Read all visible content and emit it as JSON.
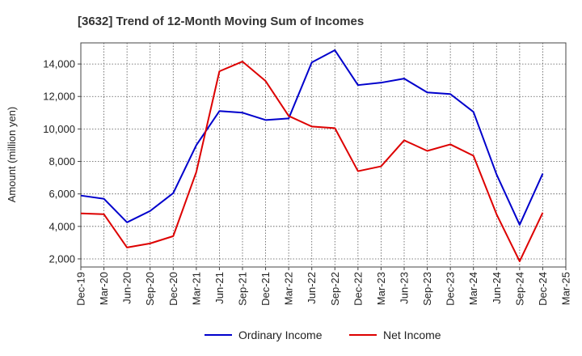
{
  "chart_data": {
    "type": "line",
    "title": "[3632]  Trend of 12-Month Moving Sum of Incomes",
    "xlabel": "",
    "ylabel": "Amount (million yen)",
    "categories": [
      "Dec-19",
      "Mar-20",
      "Jun-20",
      "Sep-20",
      "Dec-20",
      "Mar-21",
      "Jun-21",
      "Sep-21",
      "Dec-21",
      "Mar-22",
      "Jun-22",
      "Sep-22",
      "Dec-22",
      "Mar-23",
      "Jun-23",
      "Sep-23",
      "Dec-23",
      "Mar-24",
      "Jun-24",
      "Sep-24",
      "Dec-24",
      "Mar-25"
    ],
    "ylim": [
      1500,
      15300
    ],
    "yticks": [
      2000,
      4000,
      6000,
      8000,
      10000,
      12000,
      14000
    ],
    "ytick_labels": [
      "2,000",
      "4,000",
      "6,000",
      "8,000",
      "10,000",
      "12,000",
      "14,000"
    ],
    "grid": true,
    "legend_position": "bottom",
    "series": [
      {
        "name": "Ordinary Income",
        "color": "#0000cc",
        "values": [
          5900,
          5700,
          4250,
          4950,
          6050,
          9000,
          11100,
          11000,
          10550,
          10650,
          14100,
          14850,
          12700,
          12850,
          13100,
          12250,
          12150,
          11050,
          7200,
          4100,
          7250,
          null
        ]
      },
      {
        "name": "Net Income",
        "color": "#dd0000",
        "values": [
          4800,
          4750,
          2700,
          2950,
          3400,
          7350,
          13550,
          14150,
          12950,
          10800,
          10150,
          10050,
          7400,
          7700,
          9300,
          8650,
          9050,
          8350,
          4750,
          1850,
          4850,
          null
        ]
      }
    ]
  }
}
